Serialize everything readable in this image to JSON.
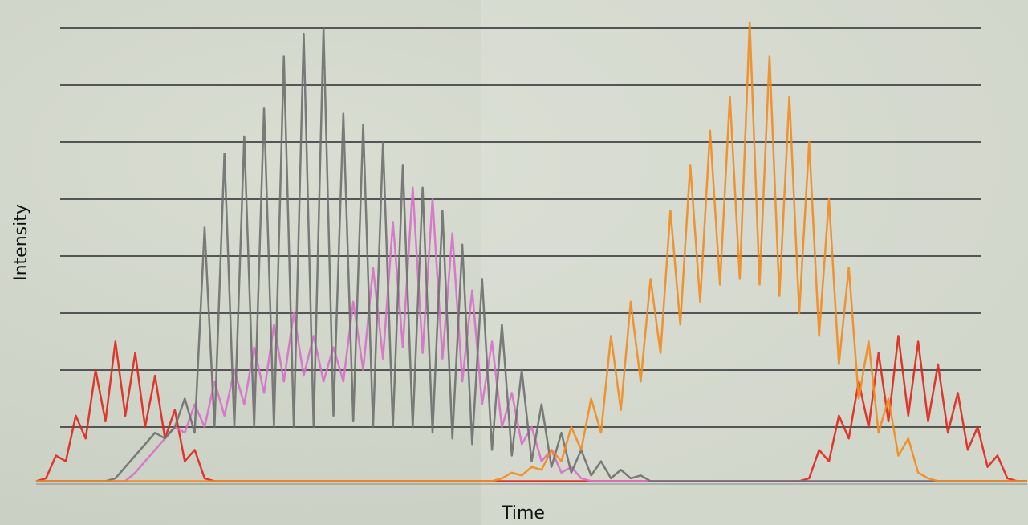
{
  "chart_data": {
    "type": "line",
    "xlabel": "Time",
    "ylabel": "Intensity",
    "x": [
      0,
      1,
      2,
      3,
      4,
      5,
      6,
      7,
      8,
      9,
      10,
      11,
      12,
      13,
      14,
      15,
      16,
      17,
      18,
      19,
      20,
      21,
      22,
      23,
      24,
      25,
      26,
      27,
      28,
      29,
      30,
      31,
      32,
      33,
      34,
      35,
      36,
      37,
      38,
      39,
      40,
      41,
      42,
      43,
      44,
      45,
      46,
      47,
      48,
      49,
      50,
      51,
      52,
      53,
      54,
      55,
      56,
      57,
      58,
      59,
      60,
      61,
      62,
      63,
      64,
      65,
      66,
      67,
      68,
      69,
      70,
      71,
      72,
      73,
      74,
      75,
      76,
      77,
      78,
      79,
      80,
      81,
      82,
      83,
      84,
      85,
      86,
      87,
      88,
      89,
      90,
      91,
      92,
      93,
      94,
      95,
      96,
      97,
      98,
      99,
      100
    ],
    "xlim": [
      0,
      100
    ],
    "ylim": [
      0,
      8.4
    ],
    "yticks": [
      1,
      2,
      3,
      4,
      5,
      6,
      7,
      8
    ],
    "grid": true,
    "series": [
      {
        "color": "#e0261c",
        "values": [
          0.05,
          0.1,
          0.5,
          0.4,
          1.2,
          0.8,
          2.0,
          1.1,
          2.5,
          1.2,
          2.3,
          1.0,
          1.9,
          0.8,
          1.3,
          0.4,
          0.6,
          0.1,
          0.05,
          0.05,
          0.05,
          0.05,
          0.05,
          0.05,
          0.05,
          0.05,
          0.05,
          0.05,
          0.05,
          0.05,
          0.05,
          0.05,
          0.05,
          0.05,
          0.05,
          0.05,
          0.05,
          0.05,
          0.05,
          0.05,
          0.05,
          0.05,
          0.05,
          0.05,
          0.05,
          0.05,
          0.05,
          0.05,
          0.05,
          0.05,
          0.05,
          0.05,
          0.05,
          0.05,
          0.05,
          0.05,
          0.05,
          0.05,
          0.05,
          0.05,
          0.05,
          0.05,
          0.05,
          0.05,
          0.05,
          0.05,
          0.05,
          0.05,
          0.05,
          0.05,
          0.05,
          0.05,
          0.05,
          0.05,
          0.05,
          0.05,
          0.05,
          0.05,
          0.1,
          0.6,
          0.4,
          1.2,
          0.8,
          1.8,
          1.0,
          2.3,
          1.1,
          2.6,
          1.2,
          2.5,
          1.1,
          2.1,
          0.9,
          1.6,
          0.6,
          1.0,
          0.3,
          0.5,
          0.1,
          0.05,
          0.05
        ]
      },
      {
        "color": "#d66fc8",
        "values": [
          0.05,
          0.05,
          0.05,
          0.05,
          0.05,
          0.05,
          0.05,
          0.05,
          0.05,
          0.05,
          0.2,
          0.4,
          0.6,
          0.8,
          1.0,
          0.9,
          1.4,
          1.0,
          1.8,
          1.2,
          2.0,
          1.4,
          2.4,
          1.6,
          2.8,
          1.8,
          3.0,
          1.9,
          2.6,
          1.8,
          2.4,
          1.8,
          3.2,
          2.0,
          3.8,
          2.2,
          4.6,
          2.4,
          5.2,
          2.3,
          5.0,
          2.2,
          4.4,
          1.8,
          3.4,
          1.4,
          2.5,
          1.0,
          1.6,
          0.7,
          1.0,
          0.4,
          0.6,
          0.2,
          0.3,
          0.1,
          0.05,
          0.05,
          0.05,
          0.05,
          0.05,
          0.05,
          0.05,
          0.05,
          0.05,
          0.05,
          0.05,
          0.05,
          0.05,
          0.05,
          0.05,
          0.05,
          0.05,
          0.05,
          0.05,
          0.05,
          0.05,
          0.05,
          0.05,
          0.05,
          0.05,
          0.05,
          0.05,
          0.05,
          0.05,
          0.05,
          0.05,
          0.05,
          0.05,
          0.05,
          0.05,
          0.05,
          0.05,
          0.05,
          0.05,
          0.05,
          0.05,
          0.05,
          0.05,
          0.05,
          0.05
        ]
      },
      {
        "color": "#6f6f6f",
        "values": [
          0.05,
          0.05,
          0.05,
          0.05,
          0.05,
          0.05,
          0.05,
          0.05,
          0.1,
          0.3,
          0.5,
          0.7,
          0.9,
          0.8,
          1.0,
          1.5,
          0.9,
          4.5,
          1.0,
          5.8,
          1.0,
          6.1,
          1.0,
          6.6,
          1.0,
          7.5,
          1.0,
          7.9,
          1.0,
          8.0,
          1.2,
          6.5,
          1.1,
          6.3,
          1.0,
          6.0,
          1.0,
          5.6,
          1.0,
          5.2,
          0.9,
          4.8,
          0.8,
          4.2,
          0.7,
          3.6,
          0.6,
          2.8,
          0.5,
          2.0,
          0.4,
          1.4,
          0.3,
          0.9,
          0.2,
          0.6,
          0.15,
          0.4,
          0.1,
          0.25,
          0.1,
          0.15,
          0.05,
          0.05,
          0.05,
          0.05,
          0.05,
          0.05,
          0.05,
          0.05,
          0.05,
          0.05,
          0.05,
          0.05,
          0.05,
          0.05,
          0.05,
          0.05,
          0.05,
          0.05,
          0.05,
          0.05,
          0.05,
          0.05,
          0.05,
          0.05,
          0.05,
          0.05,
          0.05,
          0.05,
          0.05,
          0.05,
          0.05,
          0.05,
          0.05,
          0.05,
          0.05,
          0.05,
          0.05,
          0.05,
          0.05
        ]
      },
      {
        "color": "#f28a1e",
        "values": [
          0.05,
          0.05,
          0.05,
          0.05,
          0.05,
          0.05,
          0.05,
          0.05,
          0.05,
          0.05,
          0.05,
          0.05,
          0.05,
          0.05,
          0.05,
          0.05,
          0.05,
          0.05,
          0.05,
          0.05,
          0.05,
          0.05,
          0.05,
          0.05,
          0.05,
          0.05,
          0.05,
          0.05,
          0.05,
          0.05,
          0.05,
          0.05,
          0.05,
          0.05,
          0.05,
          0.05,
          0.05,
          0.05,
          0.05,
          0.05,
          0.05,
          0.05,
          0.05,
          0.05,
          0.05,
          0.05,
          0.05,
          0.1,
          0.2,
          0.15,
          0.3,
          0.25,
          0.6,
          0.4,
          1.0,
          0.6,
          1.5,
          0.9,
          2.6,
          1.3,
          3.2,
          1.8,
          3.6,
          2.3,
          4.8,
          2.8,
          5.6,
          3.2,
          6.2,
          3.5,
          6.8,
          3.6,
          8.1,
          3.5,
          7.5,
          3.3,
          6.8,
          3.0,
          6.0,
          2.6,
          5.0,
          2.1,
          3.8,
          1.5,
          2.5,
          0.9,
          1.5,
          0.5,
          0.8,
          0.2,
          0.1,
          0.05,
          0.05,
          0.05,
          0.05,
          0.05,
          0.05,
          0.05,
          0.05,
          0.05,
          0.05
        ]
      }
    ]
  }
}
